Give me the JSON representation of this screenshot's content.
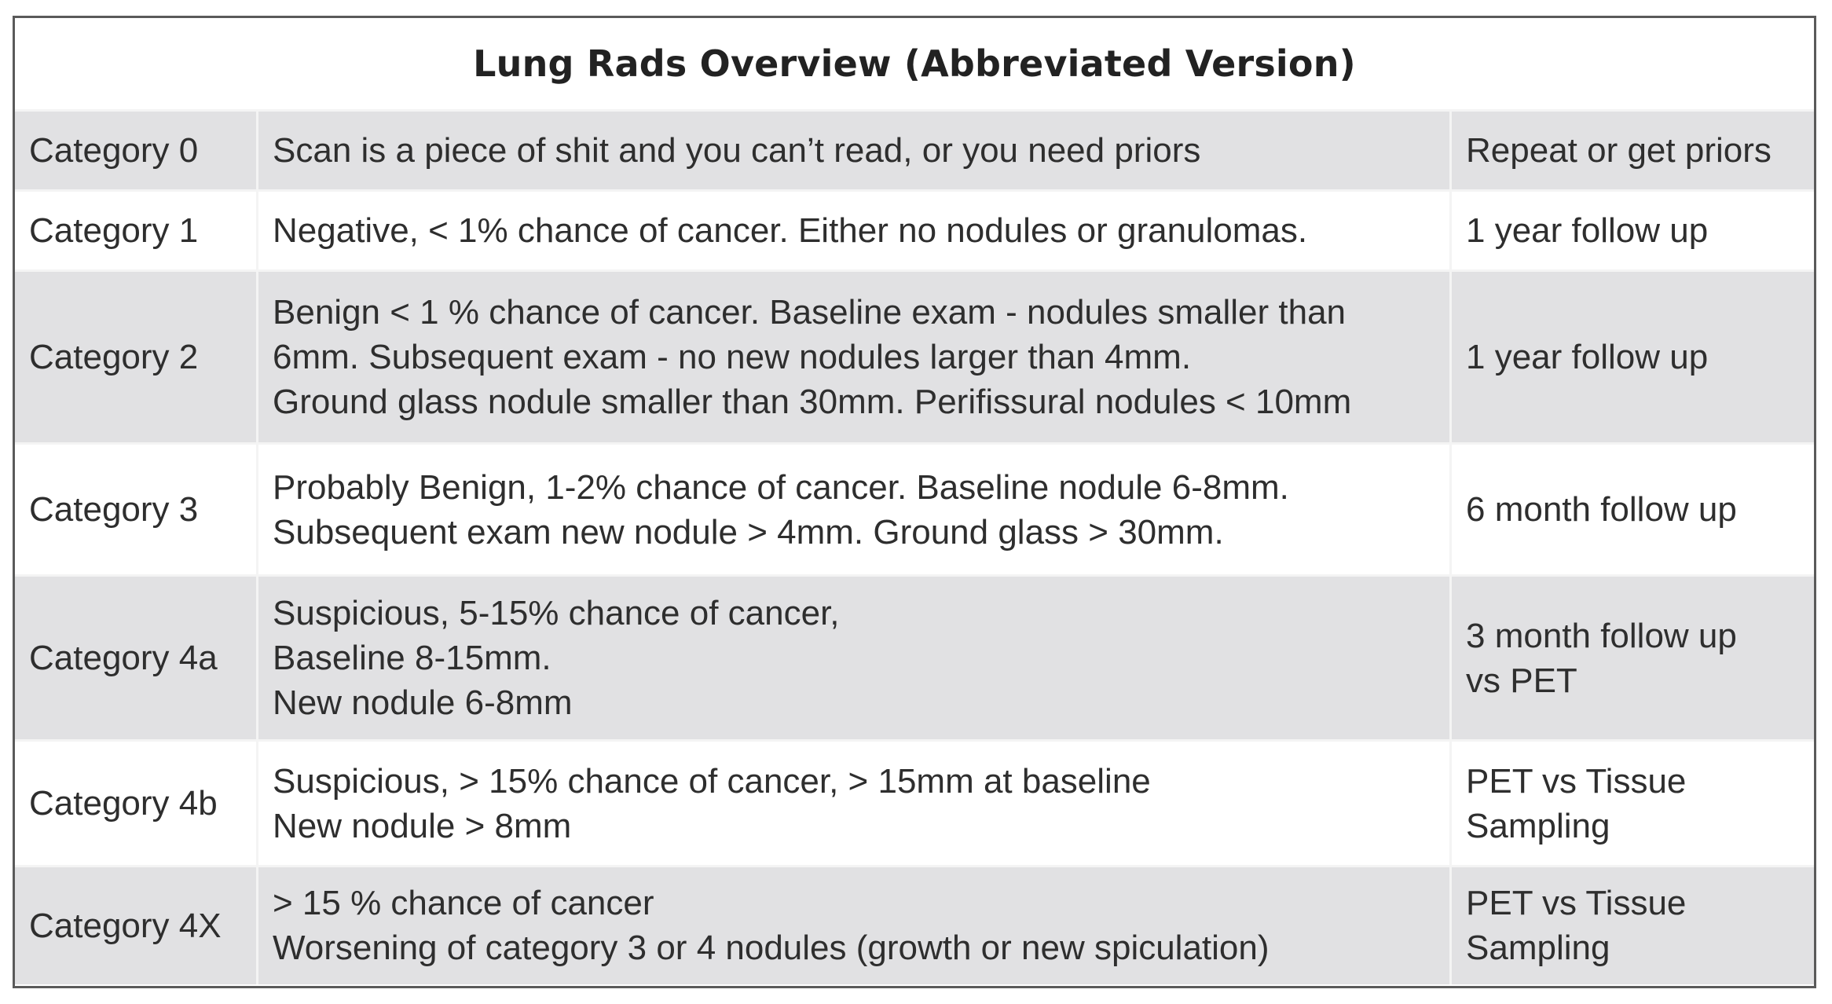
{
  "table": {
    "title": "Lung Rads Overview (Abbreviated Version)",
    "rows": [
      {
        "category": "Category 0",
        "description": [
          "Scan is a piece of shit and you can’t read, or you need priors"
        ],
        "action": [
          "Repeat or get priors"
        ]
      },
      {
        "category": "Category 1",
        "description": [
          "Negative, < 1% chance of cancer.  Either no nodules or granulomas."
        ],
        "action": [
          "1 year follow up"
        ]
      },
      {
        "category": "Category 2",
        "description": [
          "Benign < 1 % chance of cancer. Baseline exam - nodules smaller than",
          "6mm.  Subsequent exam - no new nodules larger than 4mm.",
          "Ground glass nodule smaller than 30mm. Perifissural nodules < 10mm"
        ],
        "action": [
          "1 year follow up"
        ]
      },
      {
        "category": "Category 3",
        "description": [
          "Probably Benign, 1-2% chance of cancer. Baseline nodule 6-8mm.",
          "Subsequent exam new nodule > 4mm.  Ground glass > 30mm."
        ],
        "action": [
          "6 month follow up"
        ]
      },
      {
        "category": "Category 4a",
        "description": [
          "Suspicious, 5-15% chance of cancer,",
          "Baseline 8-15mm.",
          "New nodule 6-8mm"
        ],
        "action": [
          "3 month follow up",
          "vs PET"
        ]
      },
      {
        "category": "Category 4b",
        "description": [
          "Suspicious, > 15% chance of cancer, > 15mm at baseline",
          "New nodule > 8mm"
        ],
        "action": [
          "PET vs Tissue",
          "Sampling"
        ]
      },
      {
        "category": "Category 4X",
        "description": [
          "> 15 % chance of cancer",
          "Worsening of category 3 or 4 nodules (growth or new spiculation)"
        ],
        "action": [
          "PET vs Tissue",
          "Sampling"
        ]
      }
    ]
  }
}
